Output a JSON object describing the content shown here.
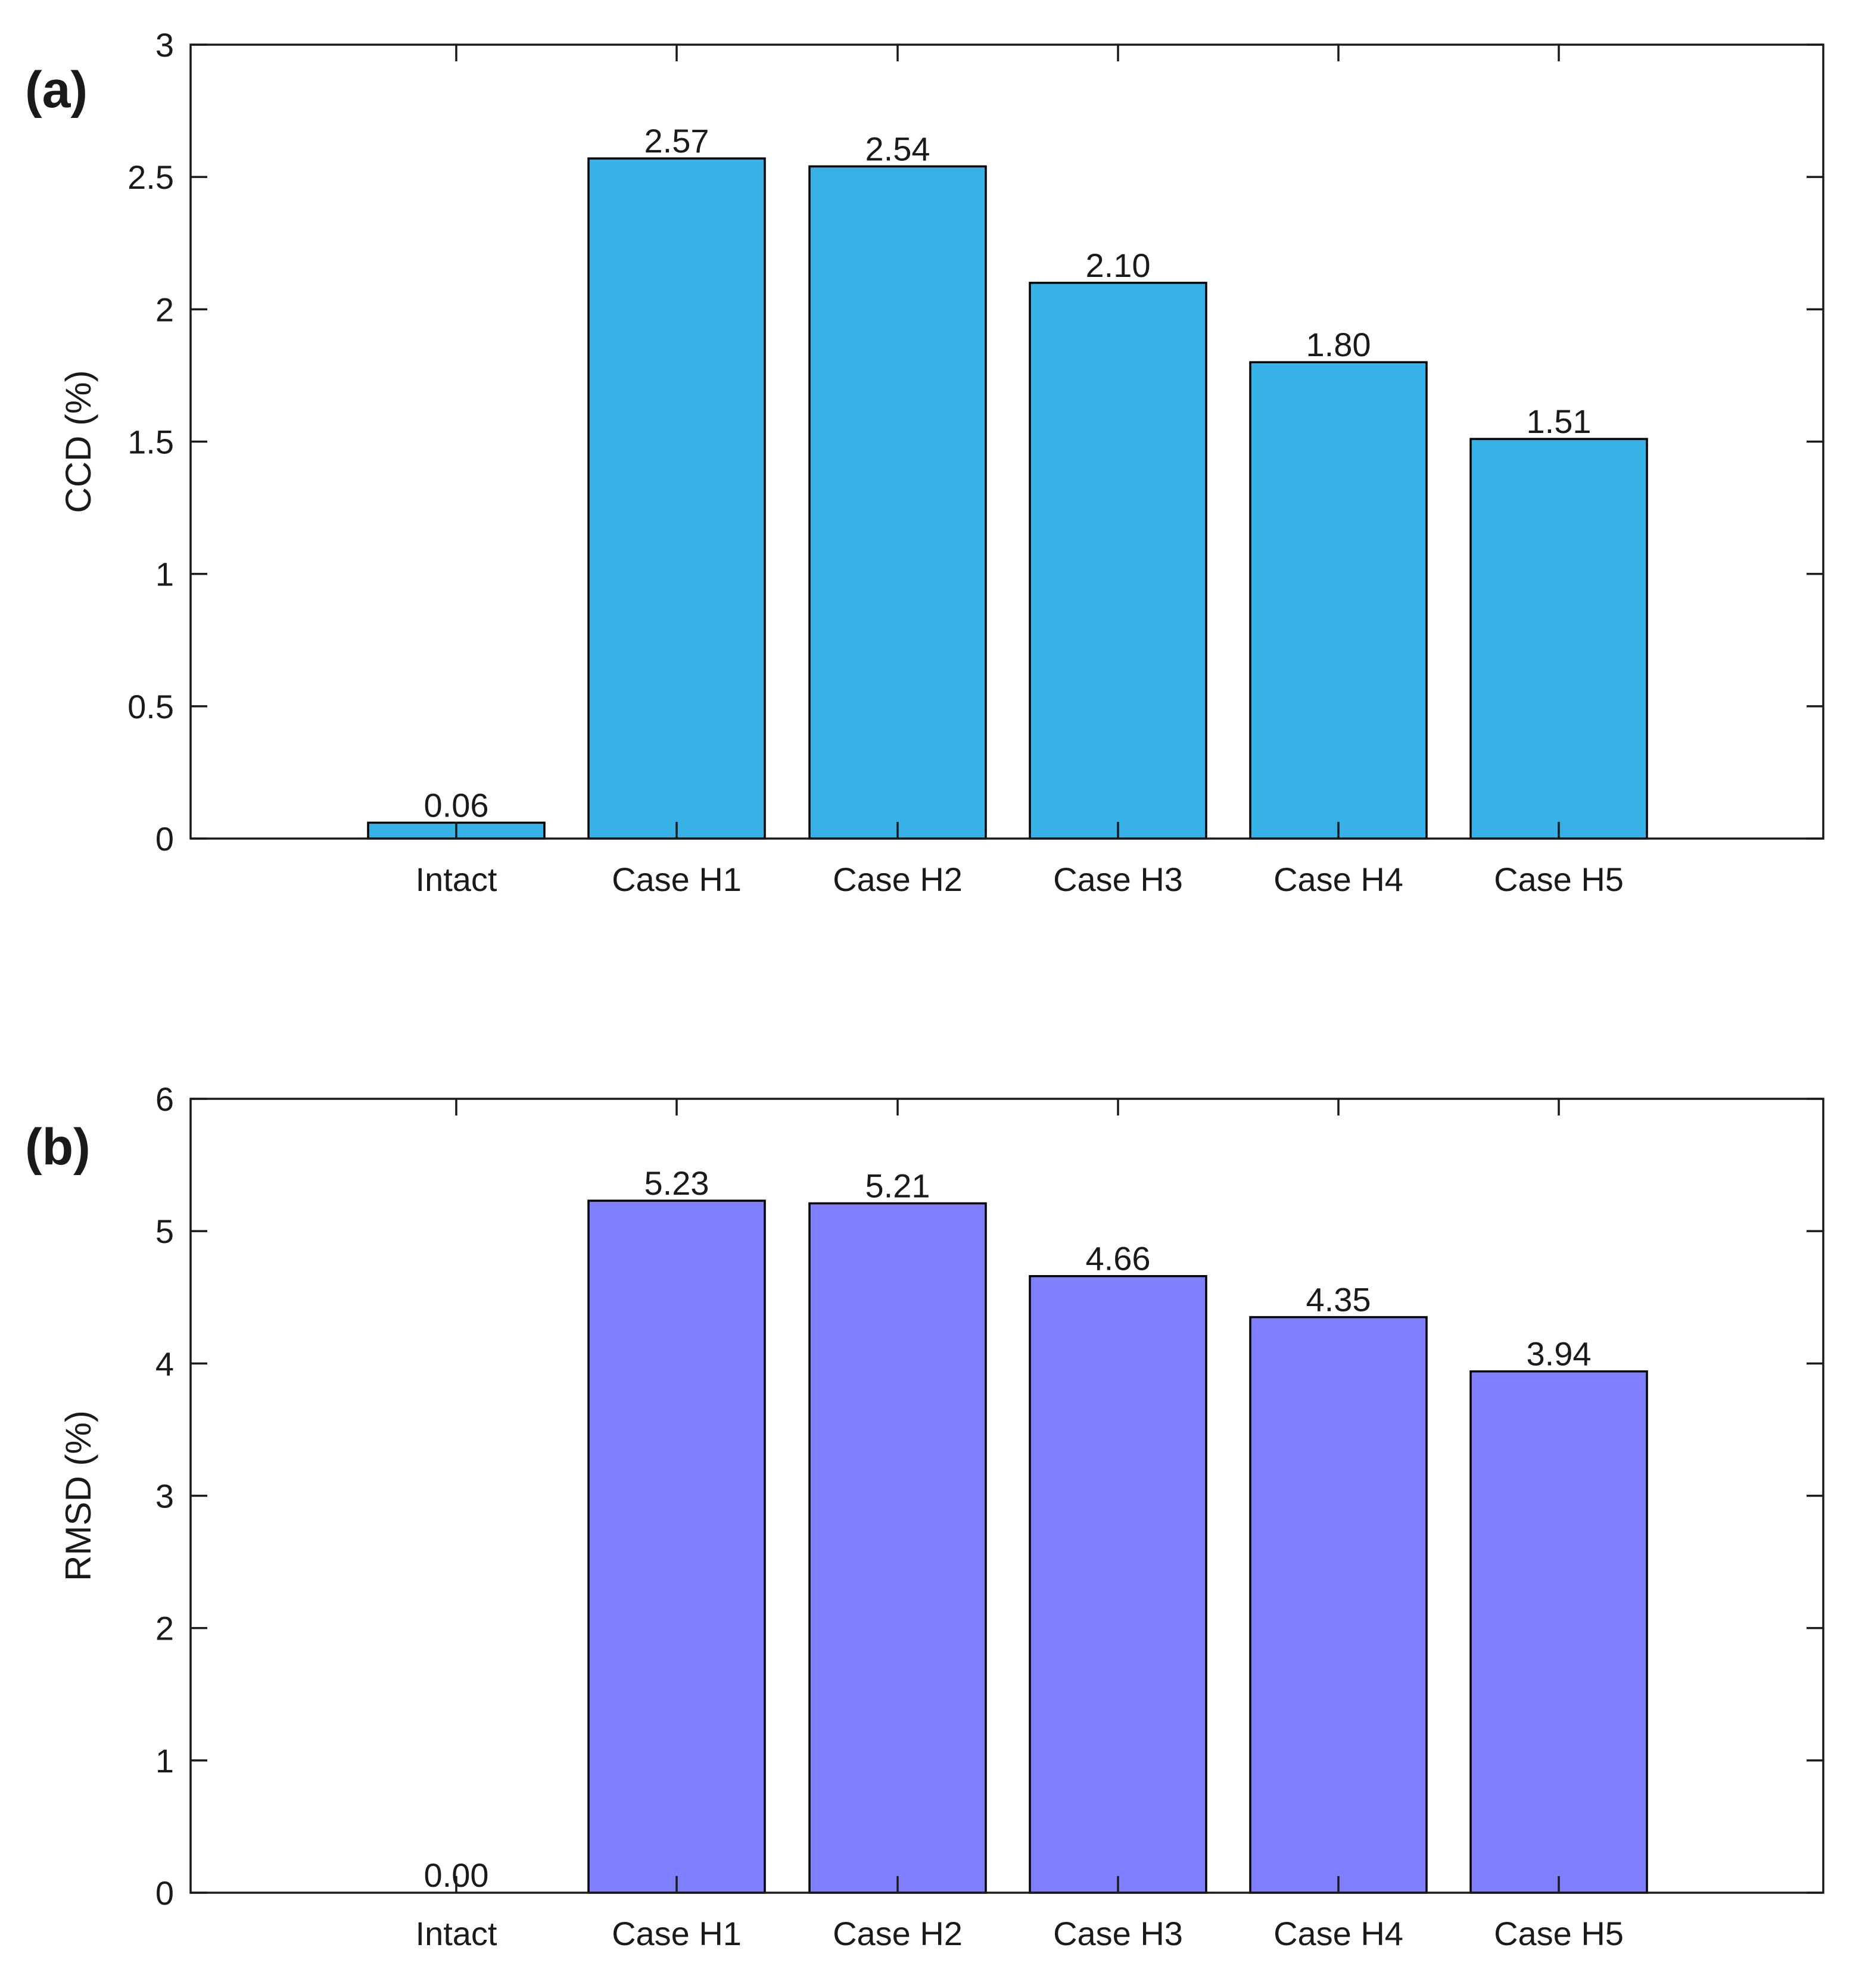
{
  "chart_data": [
    {
      "type": "bar",
      "panel_label": "(a)",
      "categories": [
        "Intact",
        "Case H1",
        "Case H2",
        "Case H3",
        "Case H4",
        "Case H5"
      ],
      "values": [
        0.06,
        2.57,
        2.54,
        2.1,
        1.8,
        1.51
      ],
      "value_labels": [
        "0.06",
        "2.57",
        "2.54",
        "2.10",
        "1.80",
        "1.51"
      ],
      "ylabel": "CCD (%)",
      "ylim": [
        0,
        3
      ],
      "yticks": [
        0,
        0.5,
        1,
        1.5,
        2,
        2.5,
        3
      ],
      "ytick_labels": [
        "0",
        "0.5",
        "1",
        "1.5",
        "2",
        "2.5",
        "3"
      ],
      "bar_color": "#36B2E6",
      "grid": false
    },
    {
      "type": "bar",
      "panel_label": "(b)",
      "categories": [
        "Intact",
        "Case H1",
        "Case H2",
        "Case H3",
        "Case H4",
        "Case H5"
      ],
      "values": [
        0.0,
        5.23,
        5.21,
        4.66,
        4.35,
        3.94
      ],
      "value_labels": [
        "0.00",
        "5.23",
        "5.21",
        "4.66",
        "4.35",
        "3.94"
      ],
      "ylabel": "RMSD (%)",
      "ylim": [
        0,
        6
      ],
      "yticks": [
        0,
        1,
        2,
        3,
        4,
        5,
        6
      ],
      "ytick_labels": [
        "0",
        "1",
        "2",
        "3",
        "4",
        "5",
        "6"
      ],
      "bar_color": "#8080FF",
      "grid": false
    }
  ]
}
